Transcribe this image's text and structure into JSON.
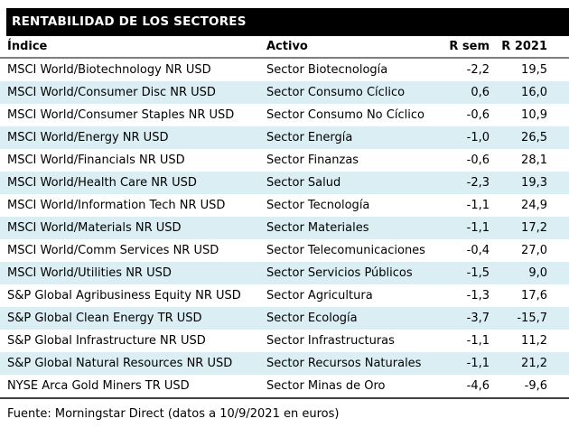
{
  "title": "RENTABILIDAD DE LOS SECTORES",
  "footer": "Fuente: Morningstar Direct (datos a 10/9/2021 en euros)",
  "colors": {
    "title_bar_bg": "#000000",
    "title_bar_text": "#ffffff",
    "row_alt_bg": "#daeef3",
    "header_divider": "#7f7f7f",
    "bottom_divider": "#404040",
    "text": "#000000"
  },
  "table": {
    "columns": [
      "Índice",
      "Activo",
      "R sem",
      "R 2021"
    ],
    "rows": [
      {
        "indice": "MSCI World/Biotechnology NR USD",
        "activo": "Sector Biotecnología",
        "r_sem": "-2,2",
        "r_2021": "19,5"
      },
      {
        "indice": "MSCI World/Consumer Disc NR USD",
        "activo": "Sector Consumo Cíclico",
        "r_sem": "0,6",
        "r_2021": "16,0"
      },
      {
        "indice": "MSCI World/Consumer Staples NR USD",
        "activo": "Sector Consumo No Cíclico",
        "r_sem": "-0,6",
        "r_2021": "10,9"
      },
      {
        "indice": "MSCI World/Energy NR USD",
        "activo": "Sector Energía",
        "r_sem": "-1,0",
        "r_2021": "26,5"
      },
      {
        "indice": "MSCI World/Financials NR USD",
        "activo": "Sector Finanzas",
        "r_sem": "-0,6",
        "r_2021": "28,1"
      },
      {
        "indice": "MSCI World/Health Care NR USD",
        "activo": "Sector Salud",
        "r_sem": "-2,3",
        "r_2021": "19,3"
      },
      {
        "indice": "MSCI World/Information Tech NR USD",
        "activo": "Sector Tecnología",
        "r_sem": "-1,1",
        "r_2021": "24,9"
      },
      {
        "indice": "MSCI World/Materials NR USD",
        "activo": "Sector Materiales",
        "r_sem": "-1,1",
        "r_2021": "17,2"
      },
      {
        "indice": "MSCI World/Comm Services NR USD",
        "activo": "Sector Telecomunicaciones",
        "r_sem": "-0,4",
        "r_2021": "27,0"
      },
      {
        "indice": "MSCI World/Utilities NR USD",
        "activo": "Sector Servicios Públicos",
        "r_sem": "-1,5",
        "r_2021": "9,0"
      },
      {
        "indice": "S&P Global Agribusiness Equity NR USD",
        "activo": "Sector Agricultura",
        "r_sem": "-1,3",
        "r_2021": "17,6"
      },
      {
        "indice": "S&P Global Clean Energy TR USD",
        "activo": "Sector Ecología",
        "r_sem": "-3,7",
        "r_2021": "-15,7"
      },
      {
        "indice": "S&P Global Infrastructure NR USD",
        "activo": "Sector Infrastructuras",
        "r_sem": "-1,1",
        "r_2021": "11,2"
      },
      {
        "indice": "S&P Global Natural Resources NR USD",
        "activo": "Sector Recursos Naturales",
        "r_sem": "-1,1",
        "r_2021": "21,2"
      },
      {
        "indice": "NYSE Arca Gold Miners TR USD",
        "activo": "Sector Minas de Oro",
        "r_sem": "-4,6",
        "r_2021": "-9,6"
      }
    ]
  }
}
